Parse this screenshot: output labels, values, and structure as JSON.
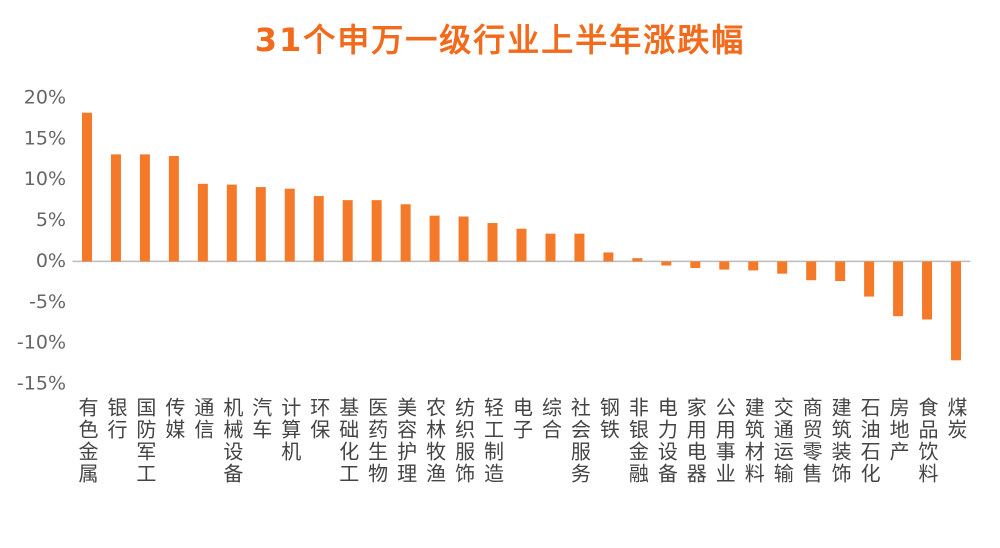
{
  "chart_data": {
    "type": "bar",
    "title": "31个申万一级行业上半年涨跌幅",
    "categories": [
      "有色金属",
      "银行",
      "国防军工",
      "传媒",
      "通信",
      "机械设备",
      "汽车",
      "计算机",
      "环保",
      "基础化工",
      "医药生物",
      "美容护理",
      "农林牧渔",
      "纺织服饰",
      "轻工制造",
      "电子",
      "综合",
      "社会服务",
      "钢铁",
      "非银金融",
      "电力设备",
      "家用电器",
      "公用事业",
      "建筑材料",
      "交通运输",
      "商贸零售",
      "建筑装饰",
      "石油石化",
      "房地产",
      "食品饮料",
      "煤炭"
    ],
    "values": [
      18.2,
      13.1,
      13.1,
      12.9,
      9.5,
      9.4,
      9.1,
      8.9,
      8.0,
      7.5,
      7.5,
      7.0,
      5.6,
      5.5,
      4.7,
      4.0,
      3.4,
      3.4,
      1.1,
      0.4,
      -0.5,
      -0.8,
      -1.0,
      -1.1,
      -1.5,
      -2.3,
      -2.4,
      -4.3,
      -6.7,
      -7.1,
      -12.1
    ],
    "color": "#f47a2a",
    "ylim": [
      -15,
      20
    ],
    "yticks": [
      {
        "value": -15,
        "label": "-15%"
      },
      {
        "value": -10,
        "label": "-10%"
      },
      {
        "value": -5,
        "label": "-5%"
      },
      {
        "value": 0,
        "label": "0%"
      },
      {
        "value": 5,
        "label": "5%"
      },
      {
        "value": 10,
        "label": "10%"
      },
      {
        "value": 15,
        "label": "15%"
      },
      {
        "value": 20,
        "label": "20%"
      }
    ]
  }
}
